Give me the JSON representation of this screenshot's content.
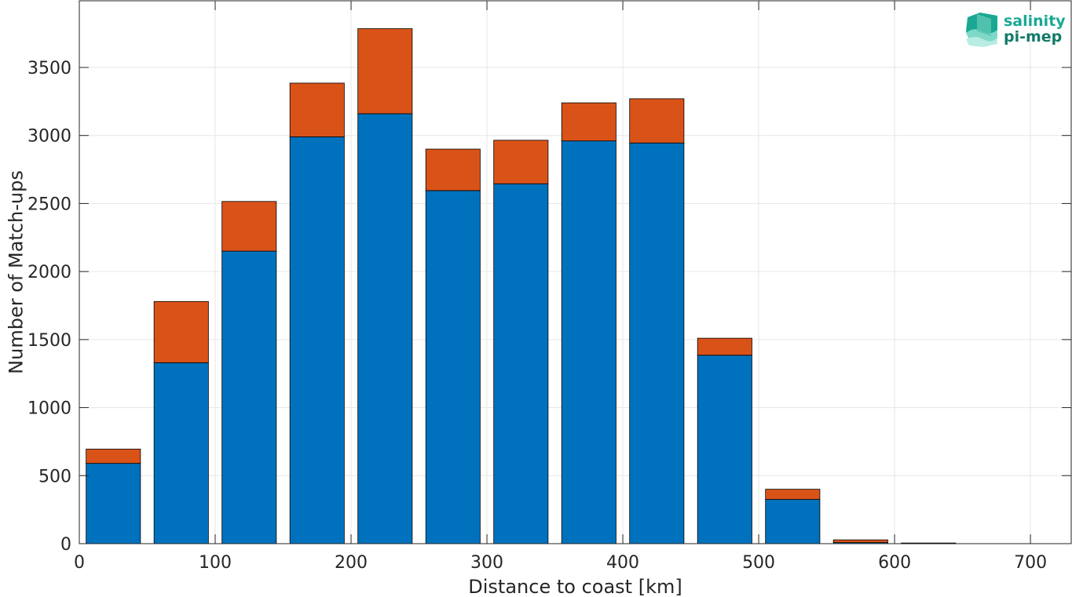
{
  "logo": {
    "line1": "salinity",
    "line2": "pi-mep",
    "color_line1": "#1aa894",
    "color_line2": "#137a6a"
  },
  "chart_data": {
    "type": "bar",
    "stacked": true,
    "x": [
      25,
      75,
      125,
      175,
      225,
      275,
      325,
      375,
      425,
      475,
      525,
      575,
      625
    ],
    "series": [
      {
        "color": "#0072bd",
        "values": [
          590,
          1330,
          2150,
          2990,
          3160,
          2595,
          2645,
          2960,
          2945,
          1385,
          325,
          8,
          2
        ]
      },
      {
        "color": "#d95319",
        "values": [
          105,
          450,
          365,
          395,
          625,
          305,
          320,
          280,
          325,
          125,
          75,
          20,
          3
        ]
      }
    ],
    "xlabel": "Distance to coast [km]",
    "ylabel": "Number of Match-ups",
    "xlim": [
      0,
      730
    ],
    "ylim": [
      0,
      3990
    ],
    "xticks": [
      0,
      100,
      200,
      300,
      400,
      500,
      600,
      700
    ],
    "yticks": [
      0,
      500,
      1000,
      1500,
      2000,
      2500,
      3000,
      3500
    ],
    "bar_width": 40,
    "grid": true
  }
}
